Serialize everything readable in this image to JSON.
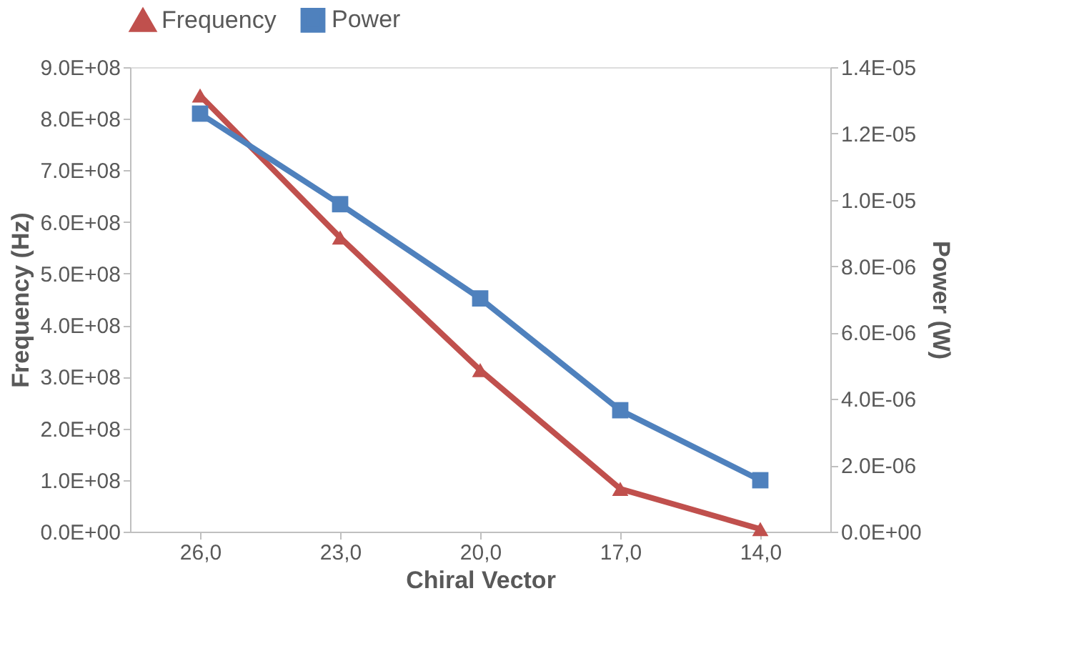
{
  "chart_data": {
    "type": "line",
    "xlabel": "Chiral Vector",
    "ylabel": "Frequency (Hz)",
    "y2label": "Power (W)",
    "categories": [
      "26,0",
      "23,0",
      "20,0",
      "17,0",
      "14,0"
    ],
    "series": [
      {
        "name": "Frequency",
        "color": "#c0504d",
        "marker": "triangle",
        "values": [
          845000000.0,
          570000000.0,
          313000000.0,
          83000000.0,
          5000000.0
        ]
      },
      {
        "name": "Power",
        "color": "#4f81bd",
        "marker": "square",
        "axis": "y2",
        "values": [
          1.26e-05,
          9.87e-06,
          7.03e-06,
          3.66e-06,
          1.55e-06
        ]
      }
    ],
    "ylim": [
      0,
      900000000.0
    ],
    "yticks": [
      {
        "value": 0,
        "label": "0.0E+00"
      },
      {
        "value": 100000000.0,
        "label": "1.0E+08"
      },
      {
        "value": 200000000.0,
        "label": "2.0E+08"
      },
      {
        "value": 300000000.0,
        "label": "3.0E+08"
      },
      {
        "value": 400000000.0,
        "label": "4.0E+08"
      },
      {
        "value": 500000000.0,
        "label": "5.0E+08"
      },
      {
        "value": 600000000.0,
        "label": "6.0E+08"
      },
      {
        "value": 700000000.0,
        "label": "7.0E+08"
      },
      {
        "value": 800000000.0,
        "label": "8.0E+08"
      },
      {
        "value": 900000000.0,
        "label": "9.0E+08"
      }
    ],
    "y2lim": [
      0,
      1.4e-05
    ],
    "y2ticks": [
      {
        "value": 0,
        "label": "0.0E+00"
      },
      {
        "value": 2e-06,
        "label": "2.0E-06"
      },
      {
        "value": 4e-06,
        "label": "4.0E-06"
      },
      {
        "value": 6e-06,
        "label": "6.0E-06"
      },
      {
        "value": 8e-06,
        "label": "8.0E-06"
      },
      {
        "value": 1e-05,
        "label": "1.0E-05"
      },
      {
        "value": 1.2e-05,
        "label": "1.2E-05"
      },
      {
        "value": 1.4e-05,
        "label": "1.4E-05"
      }
    ],
    "grid": false,
    "legend": "top",
    "line_style": "solid"
  }
}
